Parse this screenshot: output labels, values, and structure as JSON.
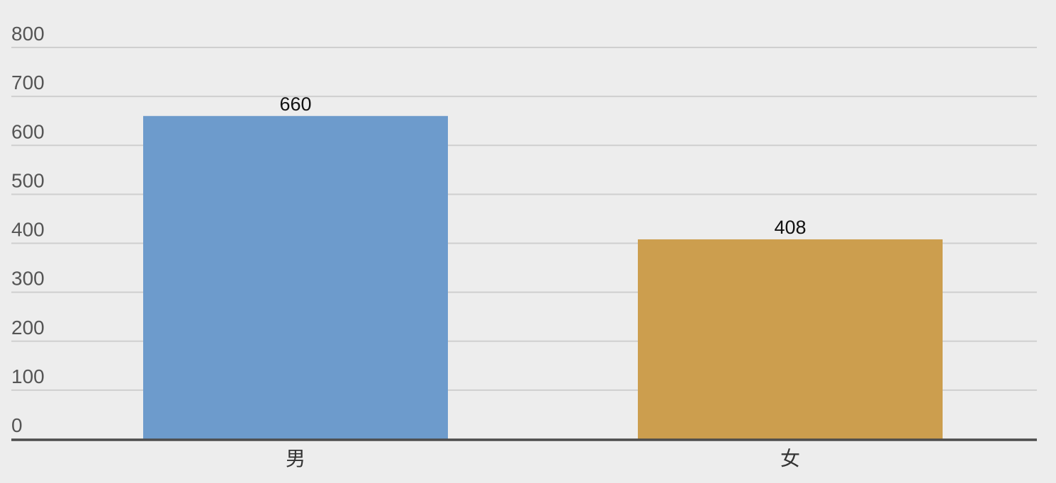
{
  "chart_data": {
    "type": "bar",
    "categories": [
      "男",
      "女"
    ],
    "values": [
      660,
      408
    ],
    "data_labels": [
      "660",
      "408"
    ],
    "colors": [
      "#6d9bcc",
      "#cc9e4e"
    ],
    "ylim": [
      0,
      800
    ],
    "yticks": [
      0,
      100,
      200,
      300,
      400,
      500,
      600,
      700,
      800
    ],
    "ytick_labels": [
      "0",
      "100",
      "200",
      "300",
      "400",
      "500",
      "600",
      "700",
      "800"
    ],
    "grid": true,
    "legend": "none"
  }
}
